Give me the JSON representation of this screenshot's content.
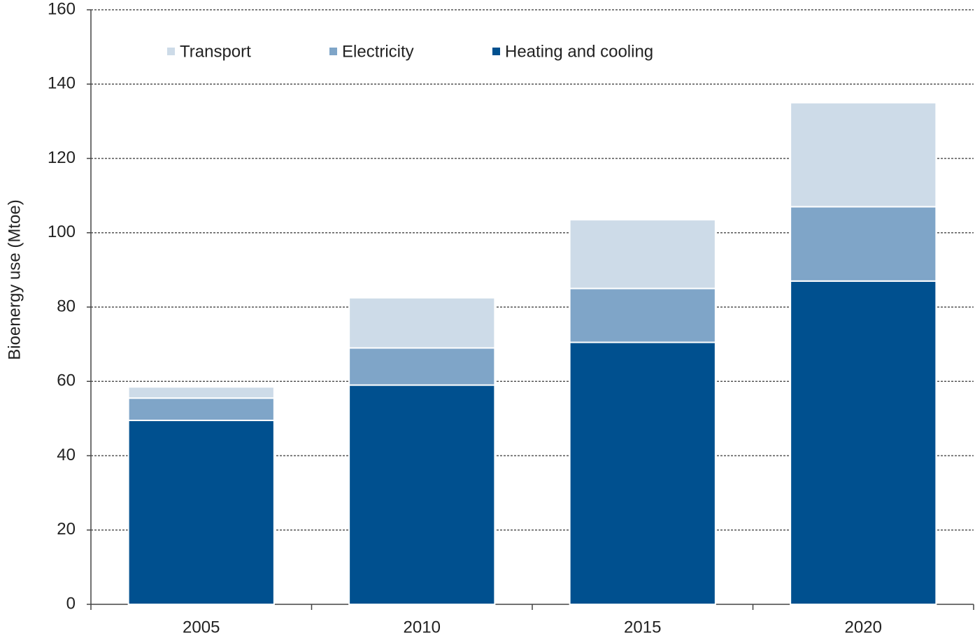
{
  "chart_data": {
    "type": "stacked_bar",
    "y_label": "Bioenergy use (Mtoe)",
    "categories": [
      "2005",
      "2010",
      "2015",
      "2020"
    ],
    "series": [
      {
        "name": "Heating and cooling",
        "color": "#00508f",
        "values": [
          49.5,
          59,
          70.5,
          87
        ]
      },
      {
        "name": "Electricity",
        "color": "#7fa5c8",
        "values": [
          6,
          10,
          14.5,
          20
        ]
      },
      {
        "name": "Transport",
        "color": "#cddbe8",
        "values": [
          3,
          13.5,
          18.5,
          28
        ]
      }
    ],
    "ylim": [
      0,
      160
    ],
    "yticks": [
      0,
      20,
      40,
      60,
      80,
      100,
      120,
      140,
      160
    ],
    "grid": true
  }
}
